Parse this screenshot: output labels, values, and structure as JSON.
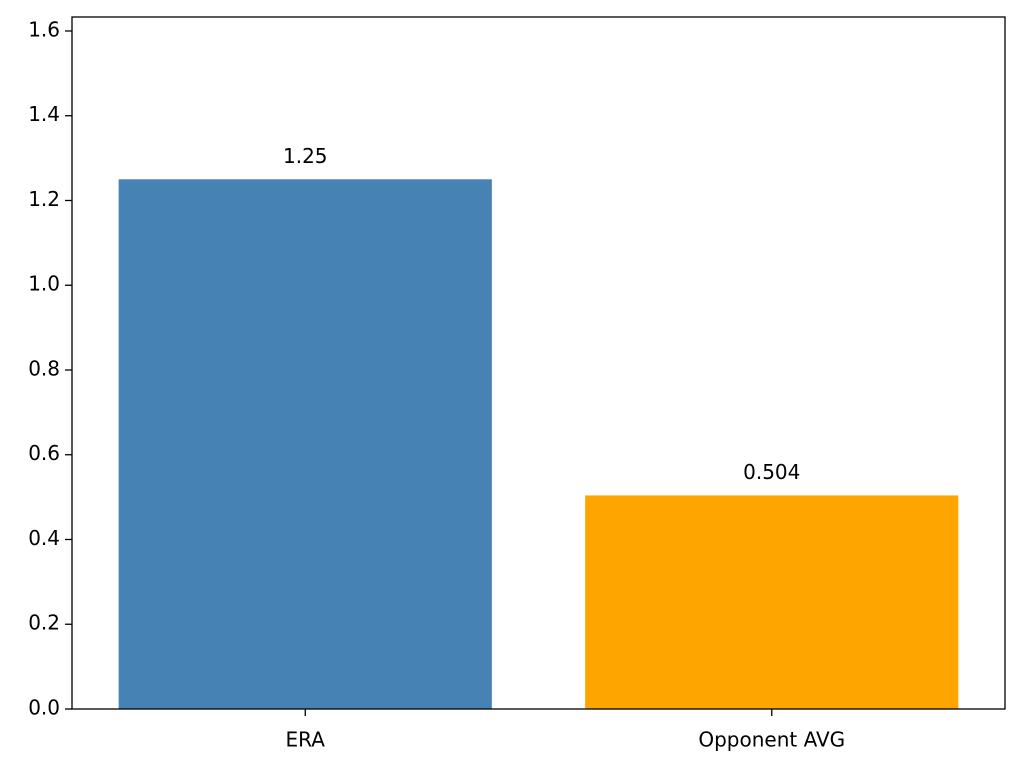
{
  "chart_data": {
    "type": "bar",
    "categories": [
      "ERA",
      "Opponent AVG"
    ],
    "values": [
      1.25,
      0.504
    ],
    "colors": [
      "#4682b4",
      "#ffa500"
    ],
    "ylim": [
      0,
      1.633
    ],
    "yticks": [
      {
        "value": 0,
        "label": "0.0"
      },
      0.2,
      0.4,
      0.6,
      0.8,
      {
        "value": 1,
        "label": "1.0"
      },
      1.2,
      1.4,
      1.6
    ],
    "grid": false
  }
}
